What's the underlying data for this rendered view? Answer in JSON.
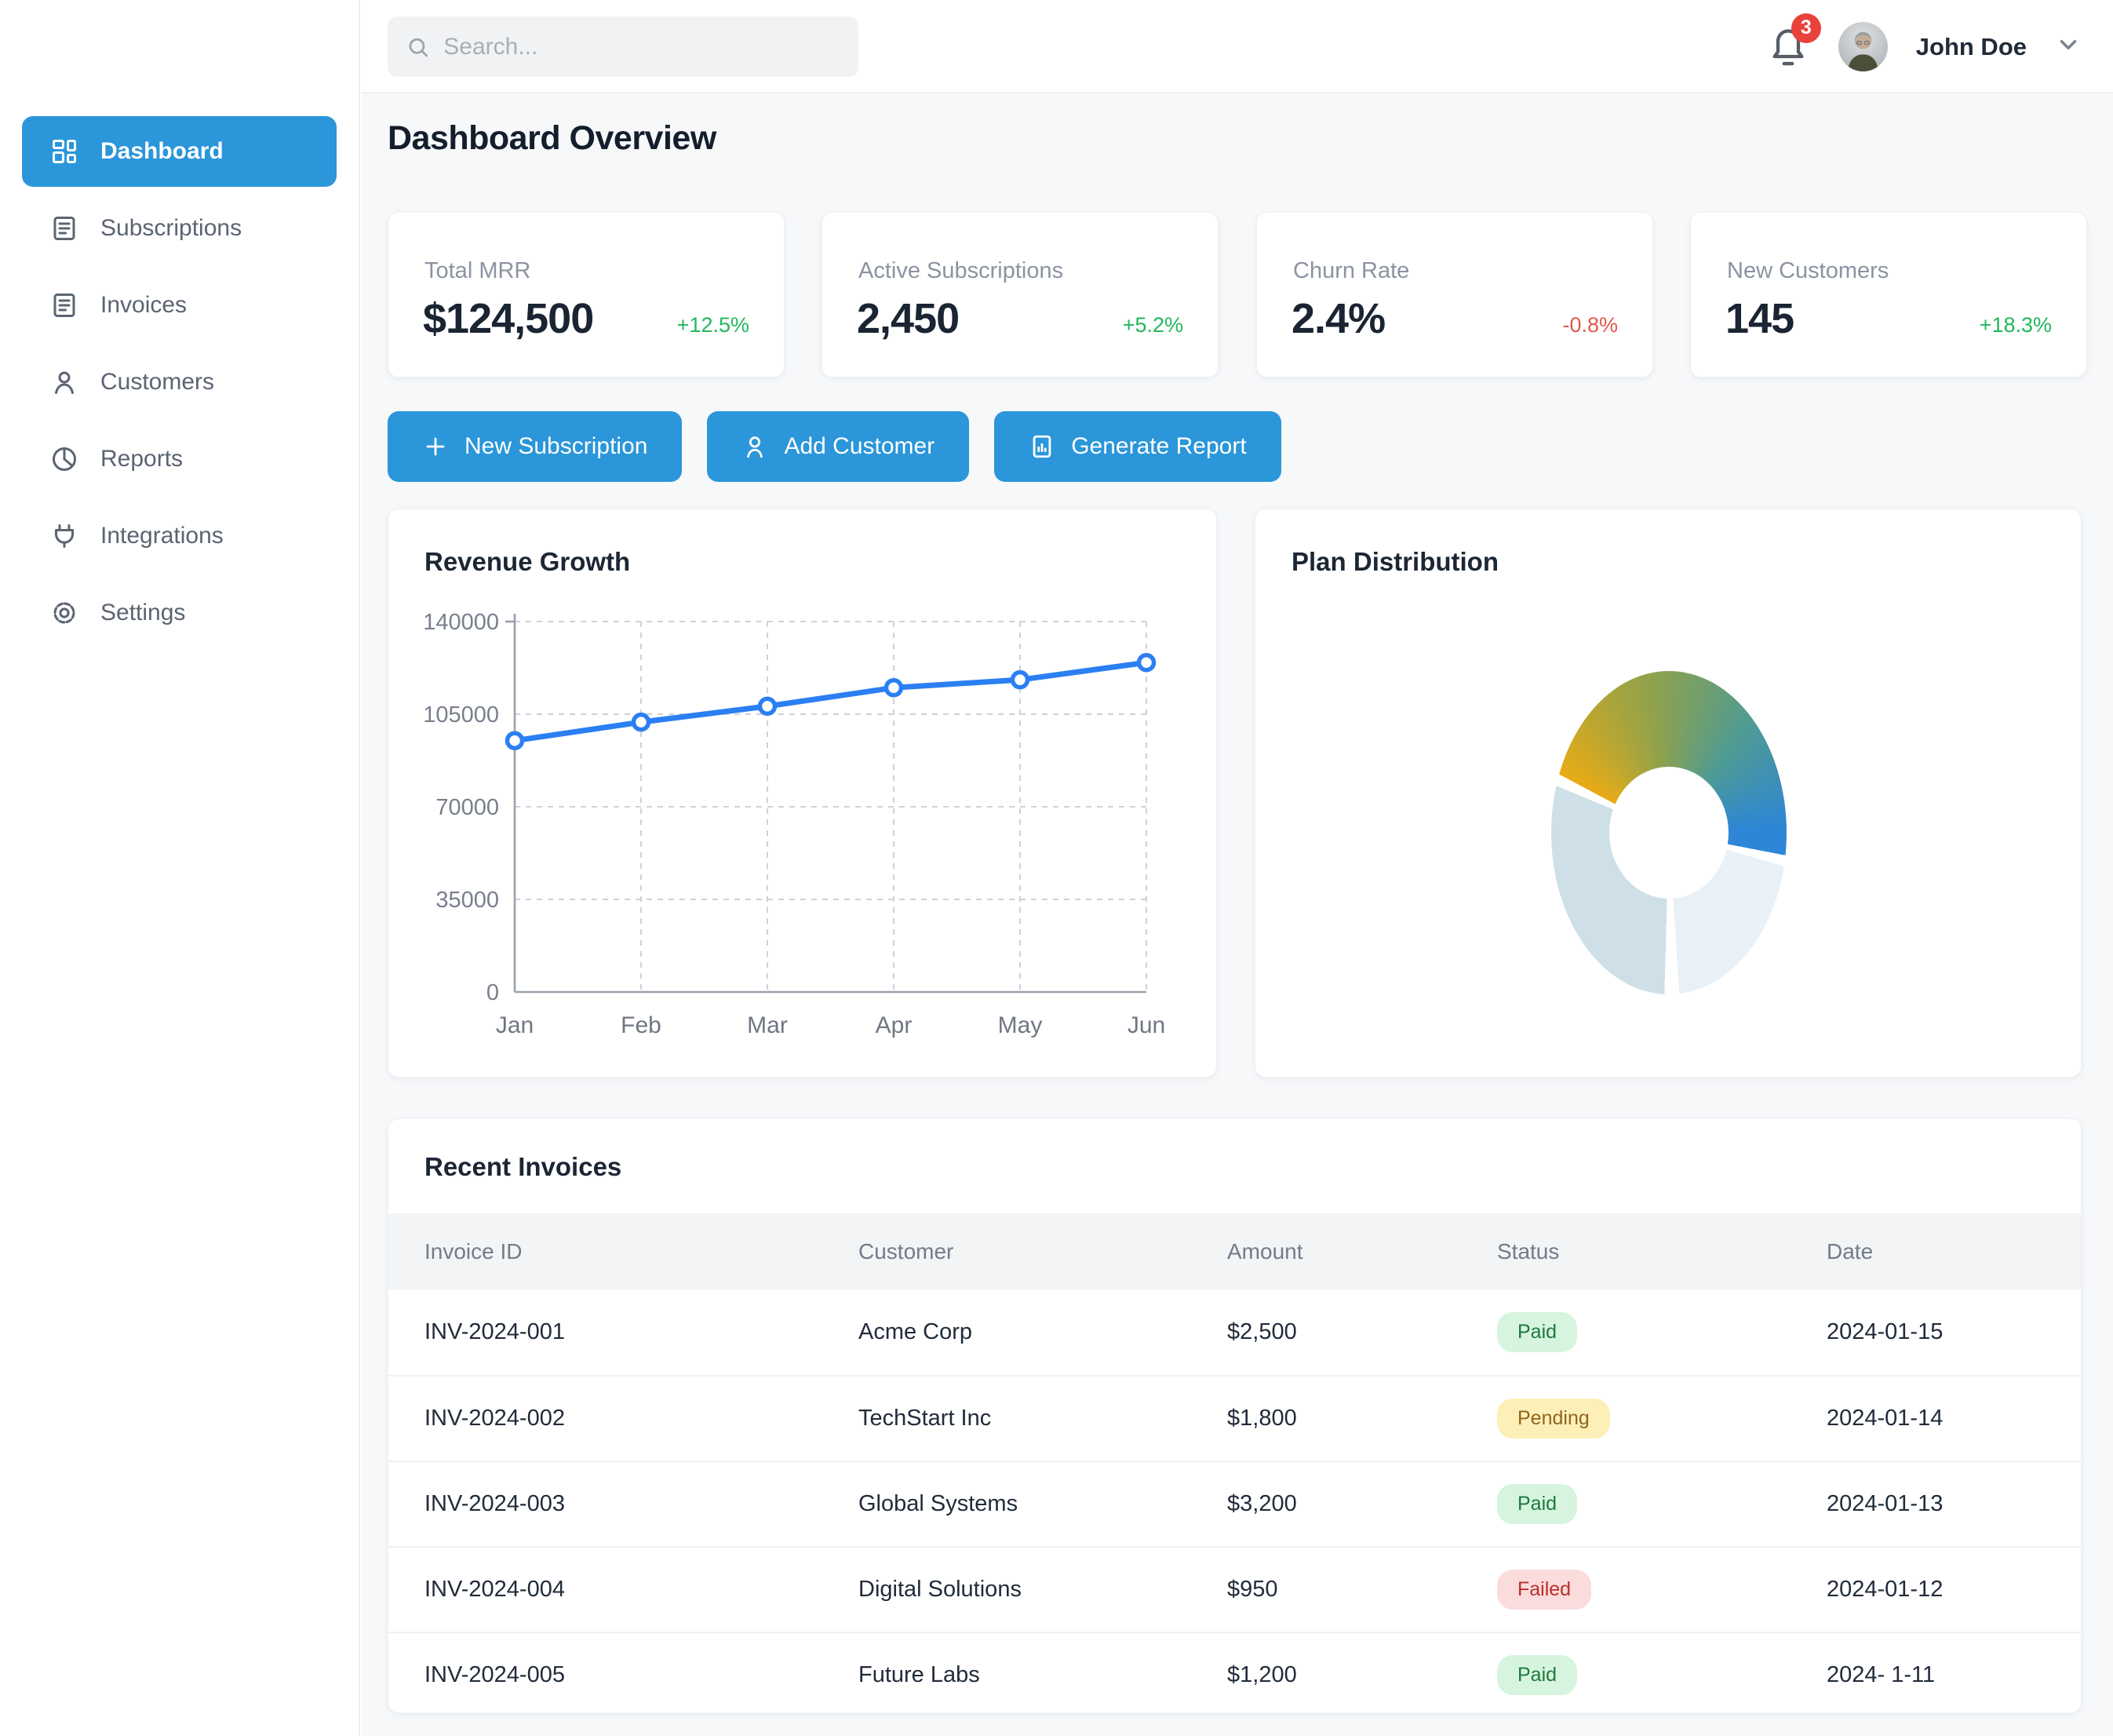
{
  "topbar": {
    "search_placeholder": "Search...",
    "notification_count": "3",
    "user_name": "John Doe"
  },
  "sidebar": {
    "items": [
      {
        "label": "Dashboard",
        "icon": "dashboard-icon",
        "active": true
      },
      {
        "label": "Subscriptions",
        "icon": "subscriptions-icon",
        "active": false
      },
      {
        "label": "Invoices",
        "icon": "invoices-icon",
        "active": false
      },
      {
        "label": "Customers",
        "icon": "customers-icon",
        "active": false
      },
      {
        "label": "Reports",
        "icon": "reports-icon",
        "active": false
      },
      {
        "label": "Integrations",
        "icon": "integrations-icon",
        "active": false
      },
      {
        "label": "Settings",
        "icon": "settings-icon",
        "active": false
      }
    ]
  },
  "page": {
    "title": "Dashboard Overview"
  },
  "stats": [
    {
      "label": "Total MRR",
      "value": "$124,500",
      "delta": "+12.5%",
      "trend": "up"
    },
    {
      "label": "Active Subscriptions",
      "value": "2,450",
      "delta": "+5.2%",
      "trend": "up"
    },
    {
      "label": "Churn Rate",
      "value": "2.4%",
      "delta": "-0.8%",
      "trend": "down"
    },
    {
      "label": "New Customers",
      "value": "145",
      "delta": "+18.3%",
      "trend": "up"
    }
  ],
  "actions": [
    {
      "label": "New Subscription",
      "icon": "plus-icon"
    },
    {
      "label": "Add Customer",
      "icon": "person-icon"
    },
    {
      "label": "Generate Report",
      "icon": "report-icon"
    }
  ],
  "colors": {
    "accent_blue": "#2b96d9",
    "line_blue": "#2b7ff2",
    "positive_green": "#22b85c",
    "negative_red": "#e2574d",
    "notification_red": "#e8423c",
    "grid_gray": "#cdd2d9",
    "axis_gray": "#9aa1ab",
    "tick_text": "#787f8c"
  },
  "chart_data": [
    {
      "type": "line",
      "title": "Revenue Growth",
      "x": [
        "Jan",
        "Feb",
        "Mar",
        "Apr",
        "May",
        "Jun"
      ],
      "series": [
        {
          "name": "Revenue",
          "values": [
            95000,
            102000,
            108000,
            115000,
            118000,
            124500
          ]
        }
      ],
      "ylim": [
        0,
        140000
      ],
      "yticks": [
        0,
        35000,
        70000,
        105000,
        140000
      ],
      "grid": true,
      "legend": false,
      "line_color": "#2b7ff2"
    },
    {
      "type": "pie",
      "title": "Plan Distribution",
      "donut": true,
      "legend": false,
      "start_deg": -62,
      "gap_deg": 5.3,
      "segments": [
        {
          "name": "gradient-gold-to-blue",
          "percent": 47,
          "sweep_deg": 163,
          "gradient": [
            "#e9ab15",
            "#8fa24c",
            "#4f9b93",
            "#2d86d6"
          ]
        },
        {
          "name": "pale-blue",
          "percent": 20,
          "sweep_deg": 70,
          "color": "#e9f1f7"
        },
        {
          "name": "steel-blue",
          "percent": 33,
          "sweep_deg": 111,
          "color": "#cfdfe8"
        }
      ]
    }
  ],
  "invoices": {
    "title": "Recent Invoices",
    "columns": [
      "Invoice ID",
      "Customer",
      "Amount",
      "Status",
      "Date"
    ],
    "rows": [
      {
        "id": "INV-2024-001",
        "customer": "Acme Corp",
        "amount": "$2,500",
        "status": "Paid",
        "date": "2024-01-15"
      },
      {
        "id": "INV-2024-002",
        "customer": "TechStart Inc",
        "amount": "$1,800",
        "status": "Pending",
        "date": "2024-01-14"
      },
      {
        "id": "INV-2024-003",
        "customer": "Global Systems",
        "amount": "$3,200",
        "status": "Paid",
        "date": "2024-01-13"
      },
      {
        "id": "INV-2024-004",
        "customer": "Digital Solutions",
        "amount": "$950",
        "status": "Failed",
        "date": "2024-01-12"
      },
      {
        "id": "INV-2024-005",
        "customer": "Future Labs",
        "amount": "$1,200",
        "status": "Paid",
        "date": "2024- 1-11"
      }
    ]
  }
}
